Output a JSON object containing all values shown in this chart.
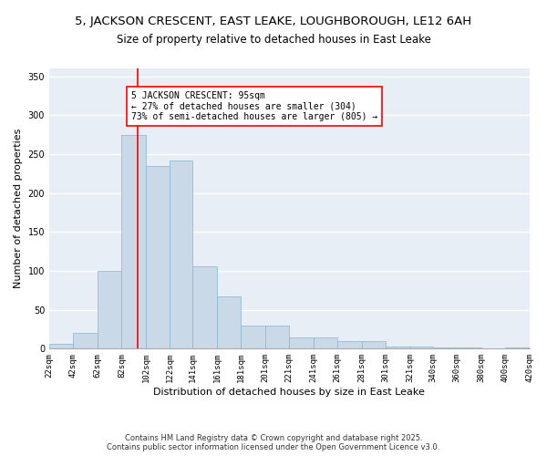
{
  "title": "5, JACKSON CRESCENT, EAST LEAKE, LOUGHBOROUGH, LE12 6AH",
  "subtitle": "Size of property relative to detached houses in East Leake",
  "xlabel": "Distribution of detached houses by size in East Leake",
  "ylabel": "Number of detached properties",
  "bar_color": "#c9d9e8",
  "bar_edge_color": "#8ab4cc",
  "bg_color": "#e8eef5",
  "grid_color": "#ffffff",
  "vline_x": 95,
  "vline_color": "red",
  "annotation_text": "5 JACKSON CRESCENT: 95sqm\n← 27% of detached houses are smaller (304)\n73% of semi-detached houses are larger (805) →",
  "annotation_box_color": "white",
  "annotation_box_edge": "red",
  "footnote": "Contains HM Land Registry data © Crown copyright and database right 2025.\nContains public sector information licensed under the Open Government Licence v3.0.",
  "bins": [
    22,
    42,
    62,
    82,
    102,
    122,
    141,
    161,
    181,
    201,
    221,
    241,
    261,
    281,
    301,
    321,
    340,
    360,
    380,
    400,
    420
  ],
  "counts": [
    6,
    20,
    100,
    275,
    235,
    242,
    106,
    67,
    30,
    30,
    15,
    15,
    10,
    10,
    3,
    3,
    2,
    1,
    0,
    2
  ],
  "ylim": [
    0,
    360
  ],
  "yticks": [
    0,
    50,
    100,
    150,
    200,
    250,
    300,
    350
  ],
  "title_fontsize": 9.5,
  "subtitle_fontsize": 8.5,
  "ylabel_fontsize": 8,
  "xlabel_fontsize": 8,
  "tick_fontsize": 6.5,
  "annotation_fontsize": 7,
  "footnote_fontsize": 6,
  "tick_labels": [
    "22sqm",
    "42sqm",
    "62sqm",
    "82sqm",
    "102sqm",
    "122sqm",
    "141sqm",
    "161sqm",
    "181sqm",
    "201sqm",
    "221sqm",
    "241sqm",
    "261sqm",
    "281sqm",
    "301sqm",
    "321sqm",
    "340sqm",
    "360sqm",
    "380sqm",
    "400sqm",
    "420sqm"
  ]
}
